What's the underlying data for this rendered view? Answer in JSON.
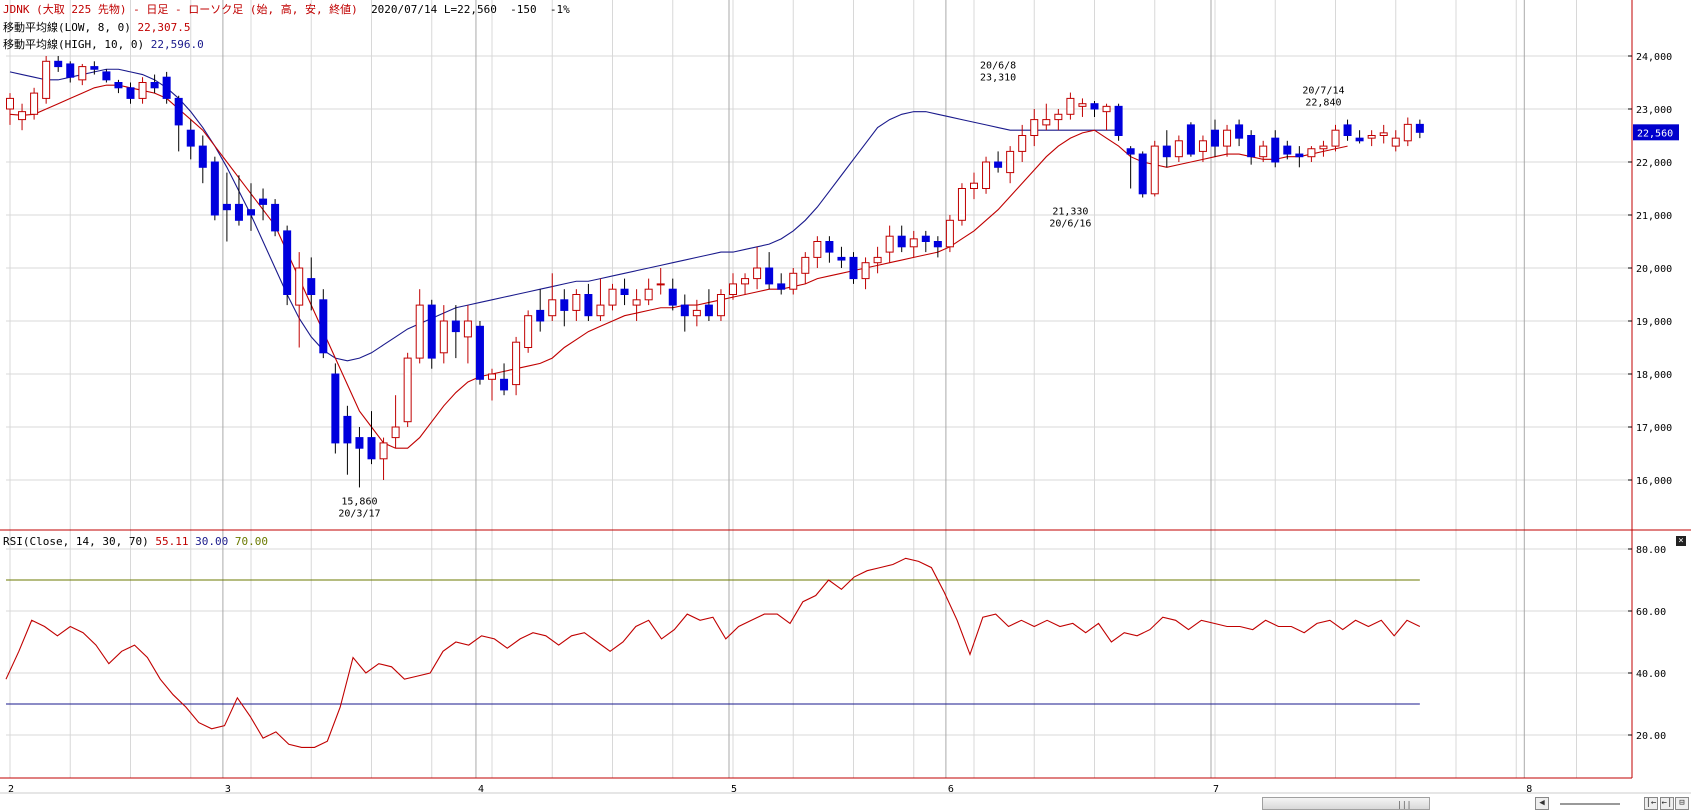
{
  "header": {
    "title": "JDNK (大取 225 先物) - 日足 - ローソク足 (始, 高, 安, 終値)",
    "date": "2020/07/14",
    "last": "L=22,560",
    "change": "-150",
    "pct": "-1%",
    "ma_low_label": "移動平均線(LOW, 8, 0)",
    "ma_low_value": "22,307.5",
    "ma_high_label": "移動平均線(HIGH, 10, 0)",
    "ma_high_value": "22,596.0",
    "rsi_label": "RSI(Close, 14, 30, 70)",
    "rsi_value": "55.11",
    "rsi_low": "30.00",
    "rsi_high": "70.00"
  },
  "colors": {
    "up": "#c00000",
    "down": "#0000dd",
    "ma_low": "#c00000",
    "ma_high": "#1a1a8c",
    "rsi": "#c00000",
    "rsi_upper": "#6b7a00",
    "rsi_lower": "#1a1a8c",
    "frame": "#c00000",
    "grid": "#d8d8d8"
  },
  "chart_data": [
    {
      "type": "candlestick",
      "ylim": [
        15000,
        25000
      ],
      "y_ticks": [
        16000,
        17000,
        18000,
        19000,
        20000,
        21000,
        22000,
        23000,
        24000
      ],
      "y_tick_labels": [
        "16,000",
        "17,000",
        "18,000",
        "19,000",
        "20,000",
        "21,000",
        "22,000",
        "23,000",
        "24,000"
      ],
      "x_labels": [
        {
          "label": "2",
          "index": 0
        },
        {
          "label": "3",
          "index": 18
        },
        {
          "label": "4",
          "index": 39
        },
        {
          "label": "5",
          "index": 60
        },
        {
          "label": "6",
          "index": 78
        },
        {
          "label": "7",
          "index": 100
        },
        {
          "label": "8",
          "index": 126
        }
      ],
      "last_price_tag": "22,560",
      "annotations": [
        {
          "index": 29,
          "price": 15860,
          "position": "below",
          "value": "15,860",
          "date": "20/3/17"
        },
        {
          "index": 82,
          "price": 23310,
          "position": "above",
          "value": "23,310",
          "date": "20/6/8"
        },
        {
          "index": 88,
          "price": 21330,
          "position": "below",
          "value": "21,330",
          "date": "20/6/16"
        },
        {
          "index": 109,
          "price": 22840,
          "position": "above",
          "value": "22,840",
          "date": "20/7/14"
        }
      ],
      "candles": [
        [
          23000,
          23300,
          22700,
          23200
        ],
        [
          22800,
          23100,
          22600,
          22950
        ],
        [
          22900,
          23400,
          22800,
          23300
        ],
        [
          23200,
          24000,
          23100,
          23900
        ],
        [
          23900,
          24000,
          23700,
          23800
        ],
        [
          23850,
          23900,
          23500,
          23600
        ],
        [
          23550,
          23850,
          23450,
          23800
        ],
        [
          23800,
          23900,
          23650,
          23750
        ],
        [
          23700,
          23750,
          23500,
          23550
        ],
        [
          23500,
          23550,
          23300,
          23400
        ],
        [
          23400,
          23500,
          23100,
          23200
        ],
        [
          23200,
          23600,
          23100,
          23500
        ],
        [
          23500,
          23650,
          23300,
          23400
        ],
        [
          23600,
          23700,
          23100,
          23200
        ],
        [
          23200,
          23250,
          22200,
          22700
        ],
        [
          22600,
          22800,
          22050,
          22300
        ],
        [
          22300,
          22500,
          21600,
          21900
        ],
        [
          22000,
          22100,
          20900,
          21000
        ],
        [
          21200,
          21800,
          20500,
          21100
        ],
        [
          21200,
          21750,
          20800,
          20900
        ],
        [
          21100,
          21600,
          20700,
          21000
        ],
        [
          21300,
          21500,
          20900,
          21200
        ],
        [
          21200,
          21300,
          20600,
          20700
        ],
        [
          20700,
          20800,
          19300,
          19500
        ],
        [
          19300,
          20300,
          18500,
          20000
        ],
        [
          19800,
          20200,
          19200,
          19500
        ],
        [
          19400,
          19600,
          18300,
          18400
        ],
        [
          18000,
          18200,
          16500,
          16700
        ],
        [
          17200,
          17400,
          16100,
          16700
        ],
        [
          16800,
          17000,
          15860,
          16600
        ],
        [
          16800,
          17300,
          16300,
          16400
        ],
        [
          16400,
          16800,
          16000,
          16700
        ],
        [
          16800,
          17600,
          16600,
          17000
        ],
        [
          17100,
          18400,
          17000,
          18300
        ],
        [
          18300,
          19600,
          18200,
          19300
        ],
        [
          19300,
          19400,
          18100,
          18300
        ],
        [
          18400,
          19300,
          18200,
          19000
        ],
        [
          19000,
          19300,
          18300,
          18800
        ],
        [
          18700,
          19300,
          18200,
          19000
        ],
        [
          18900,
          19000,
          17800,
          17900
        ],
        [
          17900,
          18100,
          17500,
          18000
        ],
        [
          17900,
          18200,
          17600,
          17700
        ],
        [
          17800,
          18700,
          17600,
          18600
        ],
        [
          18500,
          19200,
          18400,
          19100
        ],
        [
          19200,
          19600,
          18800,
          19000
        ],
        [
          19100,
          19900,
          19000,
          19400
        ],
        [
          19400,
          19600,
          18900,
          19200
        ],
        [
          19200,
          19600,
          19000,
          19500
        ],
        [
          19500,
          19700,
          19000,
          19100
        ],
        [
          19100,
          19800,
          19000,
          19300
        ],
        [
          19300,
          19700,
          19200,
          19600
        ],
        [
          19600,
          19800,
          19300,
          19500
        ],
        [
          19300,
          19600,
          19000,
          19400
        ],
        [
          19400,
          19800,
          19300,
          19600
        ],
        [
          19700,
          20000,
          19500,
          19700
        ],
        [
          19600,
          19800,
          19200,
          19300
        ],
        [
          19300,
          19500,
          18800,
          19100
        ],
        [
          19100,
          19400,
          18900,
          19200
        ],
        [
          19300,
          19600,
          19000,
          19100
        ],
        [
          19100,
          19600,
          19000,
          19500
        ],
        [
          19500,
          19900,
          19400,
          19700
        ],
        [
          19700,
          19900,
          19500,
          19800
        ],
        [
          19800,
          20400,
          19600,
          20000
        ],
        [
          20000,
          20300,
          19600,
          19700
        ],
        [
          19700,
          19900,
          19500,
          19600
        ],
        [
          19600,
          20000,
          19500,
          19900
        ],
        [
          19900,
          20300,
          19700,
          20200
        ],
        [
          20200,
          20600,
          20000,
          20500
        ],
        [
          20500,
          20600,
          20100,
          20300
        ],
        [
          20200,
          20400,
          20000,
          20150
        ],
        [
          20200,
          20300,
          19700,
          19800
        ],
        [
          19800,
          20200,
          19600,
          20100
        ],
        [
          20100,
          20400,
          19900,
          20200
        ],
        [
          20300,
          20800,
          20100,
          20600
        ],
        [
          20600,
          20800,
          20300,
          20400
        ],
        [
          20400,
          20700,
          20200,
          20550
        ],
        [
          20600,
          20700,
          20300,
          20500
        ],
        [
          20500,
          20600,
          20200,
          20400
        ],
        [
          20400,
          21000,
          20300,
          20900
        ],
        [
          20900,
          21600,
          20800,
          21500
        ],
        [
          21500,
          21800,
          21300,
          21600
        ],
        [
          21500,
          22100,
          21400,
          22000
        ],
        [
          22000,
          22200,
          21800,
          21900
        ],
        [
          21800,
          22300,
          21600,
          22200
        ],
        [
          22200,
          22700,
          22000,
          22500
        ],
        [
          22500,
          23000,
          22300,
          22800
        ],
        [
          22700,
          23100,
          22600,
          22800
        ],
        [
          22800,
          23000,
          22600,
          22900
        ],
        [
          22900,
          23310,
          22800,
          23200
        ],
        [
          23050,
          23200,
          22850,
          23100
        ],
        [
          23100,
          23150,
          22850,
          23000
        ],
        [
          22950,
          23100,
          22600,
          23050
        ],
        [
          23050,
          23100,
          22400,
          22500
        ],
        [
          22250,
          22300,
          21500,
          22150
        ],
        [
          22150,
          22200,
          21330,
          21400
        ],
        [
          21400,
          22400,
          21350,
          22300
        ],
        [
          22300,
          22600,
          21900,
          22100
        ],
        [
          22100,
          22500,
          22000,
          22400
        ],
        [
          22700,
          22750,
          22100,
          22150
        ],
        [
          22200,
          22500,
          22000,
          22400
        ],
        [
          22600,
          22800,
          22100,
          22300
        ],
        [
          22300,
          22700,
          22100,
          22600
        ],
        [
          22700,
          22800,
          22300,
          22450
        ],
        [
          22500,
          22600,
          21950,
          22100
        ],
        [
          22100,
          22400,
          22000,
          22300
        ],
        [
          22450,
          22600,
          21900,
          22000
        ],
        [
          22300,
          22400,
          22050,
          22150
        ],
        [
          22150,
          22300,
          21900,
          22100
        ],
        [
          22100,
          22300,
          22000,
          22250
        ],
        [
          22250,
          22400,
          22100,
          22300
        ],
        [
          22300,
          22700,
          22200,
          22600
        ],
        [
          22700,
          22800,
          22400,
          22500
        ],
        [
          22450,
          22600,
          22350,
          22400
        ],
        [
          22450,
          22600,
          22300,
          22500
        ],
        [
          22500,
          22700,
          22350,
          22550
        ],
        [
          22300,
          22600,
          22200,
          22450
        ],
        [
          22400,
          22840,
          22300,
          22710
        ],
        [
          22710,
          22800,
          22450,
          22560
        ]
      ],
      "ma_low": [
        22900,
        22880,
        22900,
        23000,
        23100,
        23200,
        23300,
        23400,
        23450,
        23450,
        23400,
        23350,
        23300,
        23200,
        23000,
        22800,
        22600,
        22300,
        22000,
        21700,
        21400,
        21100,
        20800,
        20300,
        19800,
        19300,
        18800,
        18300,
        17800,
        17300,
        17000,
        16700,
        16600,
        16600,
        16800,
        17100,
        17400,
        17650,
        17850,
        17950,
        18000,
        18050,
        18100,
        18150,
        18200,
        18300,
        18500,
        18650,
        18800,
        18900,
        19000,
        19100,
        19150,
        19200,
        19250,
        19250,
        19300,
        19300,
        19350,
        19400,
        19450,
        19500,
        19550,
        19600,
        19600,
        19650,
        19700,
        19800,
        19850,
        19900,
        19950,
        20000,
        20050,
        20100,
        20150,
        20200,
        20250,
        20300,
        20400,
        20550,
        20700,
        20900,
        21100,
        21350,
        21600,
        21850,
        22100,
        22300,
        22450,
        22550,
        22600,
        22450,
        22300,
        22100,
        22000,
        21950,
        21900,
        21950,
        22000,
        22050,
        22100,
        22150,
        22150,
        22100,
        22050,
        22050,
        22100,
        22100,
        22150,
        22200,
        22250,
        22300
      ],
      "ma_high": [
        23700,
        23650,
        23600,
        23550,
        23550,
        23600,
        23650,
        23700,
        23750,
        23750,
        23700,
        23650,
        23550,
        23400,
        23200,
        22950,
        22650,
        22300,
        21900,
        21450,
        21000,
        20500,
        20000,
        19500,
        19050,
        18700,
        18450,
        18300,
        18250,
        18300,
        18400,
        18550,
        18700,
        18850,
        18950,
        19050,
        19150,
        19250,
        19300,
        19350,
        19400,
        19450,
        19500,
        19550,
        19600,
        19650,
        19700,
        19750,
        19750,
        19800,
        19850,
        19900,
        19950,
        20000,
        20050,
        20100,
        20150,
        20200,
        20250,
        20300,
        20300,
        20350,
        20400,
        20450,
        20550,
        20700,
        20900,
        21150,
        21450,
        21750,
        22050,
        22350,
        22650,
        22800,
        22900,
        22950,
        22950,
        22900,
        22850,
        22800,
        22750,
        22700,
        22650,
        22600,
        22600,
        22600,
        22600,
        22600,
        22600,
        22600,
        22600,
        22600,
        22600
      ],
      "ma_high_start": 0
    },
    {
      "type": "line",
      "name": "RSI",
      "ylim": [
        10,
        90
      ],
      "y_ticks": [
        20,
        40,
        60,
        80
      ],
      "y_tick_labels": [
        "20.00",
        "40.00",
        "60.00",
        "80.00"
      ],
      "levels": [
        30,
        70
      ],
      "values": [
        38,
        47,
        57,
        55,
        52,
        55,
        53,
        49,
        43,
        47,
        49,
        45,
        38,
        33,
        29,
        24,
        22,
        23,
        32,
        26,
        19,
        21,
        17,
        16,
        16,
        18,
        29,
        45,
        40,
        43,
        42,
        38,
        39,
        40,
        47,
        50,
        49,
        52,
        51,
        48,
        51,
        53,
        52,
        49,
        52,
        53,
        50,
        47,
        50,
        55,
        57,
        51,
        54,
        59,
        57,
        58,
        51,
        55,
        57,
        59,
        59,
        56,
        63,
        65,
        70,
        67,
        71,
        73,
        74,
        75,
        77,
        76,
        74,
        66,
        57,
        46,
        58,
        59,
        55,
        57,
        55,
        57,
        55,
        56,
        53,
        56,
        50,
        53,
        52,
        54,
        58,
        57,
        54,
        57,
        56,
        55,
        55,
        54,
        57,
        55,
        55,
        53,
        56,
        57,
        54,
        57,
        55,
        57,
        52,
        57,
        55
      ]
    }
  ]
}
